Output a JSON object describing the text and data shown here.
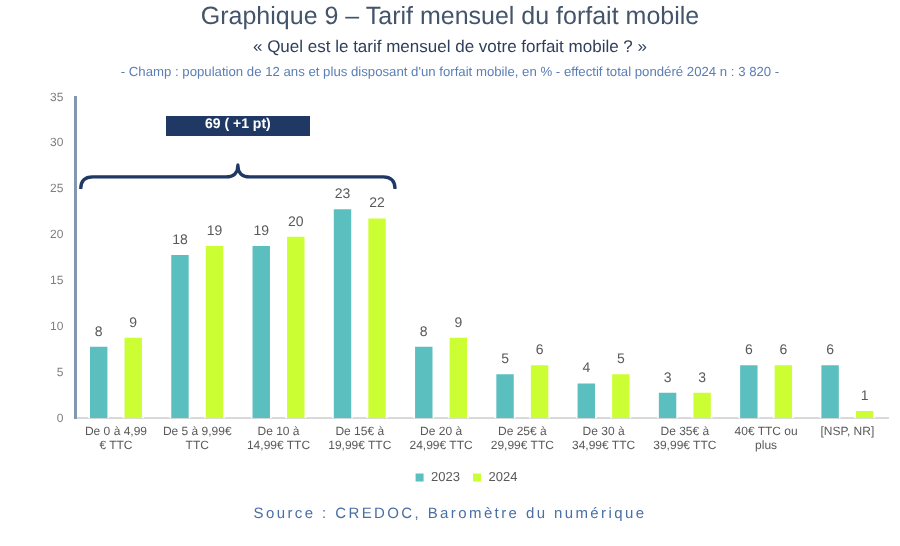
{
  "chart_data": {
    "type": "bar",
    "title": "Graphique 9 – Tarif mensuel du forfait mobile",
    "subtitle": "« Quel est le tarif mensuel de votre forfait mobile ? »",
    "annotations": [
      "- Champ : population de 12 ans et plus disposant d'un forfait mobile, en % - effectif total pondéré 2024 n : 3 820 -",
      "69 ( +1 pt)",
      "Source : CREDOC, Baromètre du numérique"
    ],
    "categories": [
      "De 0 à 4,99 € TTC",
      "De 5 à 9,99€ TTC",
      "De 10 à 14,99€ TTC",
      "De 15€ à 19,99€ TTC",
      "De 20 à 24,99€ TTC",
      "De 25€ à 29,99€ TTC",
      "De 30 à 34,99€ TTC",
      "De 35€ à 39,99€ TTC",
      "40€ TTC ou plus",
      "[NSP, NR]"
    ],
    "series": [
      {
        "name": "2023",
        "color": "#5bbfc0",
        "values": [
          8,
          18,
          19,
          23,
          8,
          5,
          4,
          3,
          6,
          6
        ]
      },
      {
        "name": "2024",
        "color": "#ccff33",
        "values": [
          9,
          19,
          20,
          22,
          9,
          6,
          5,
          3,
          6,
          1
        ]
      }
    ],
    "ylim": [
      0,
      35
    ],
    "yticks": [
      0,
      5,
      10,
      15,
      20,
      25,
      30,
      35
    ],
    "grid": false,
    "legend": "bottom",
    "data_labels": true
  }
}
